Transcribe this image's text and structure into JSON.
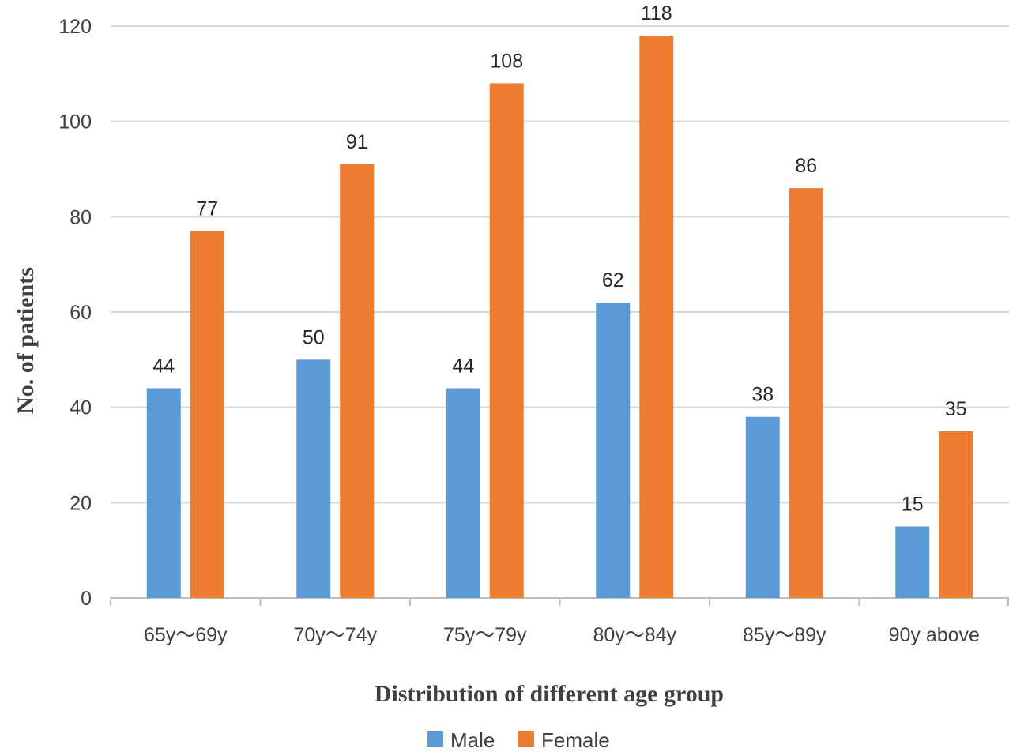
{
  "chart_data": {
    "type": "bar",
    "categories": [
      "65y～69y",
      "70y～74y",
      "75y～79y",
      "80y～84y",
      "85y～89y",
      "90y above"
    ],
    "series": [
      {
        "name": "Male",
        "values": [
          44,
          50,
          44,
          62,
          38,
          15
        ],
        "color": "#5b9bd5"
      },
      {
        "name": "Female",
        "values": [
          77,
          91,
          108,
          118,
          86,
          35
        ],
        "color": "#ed7d31"
      }
    ],
    "xlabel": "Distribution of different age group",
    "ylabel": "No. of patients",
    "ylim": [
      0,
      120
    ],
    "yticks": [
      0,
      20,
      40,
      60,
      80,
      100,
      120
    ],
    "grid": true,
    "legend_position": "bottom"
  }
}
